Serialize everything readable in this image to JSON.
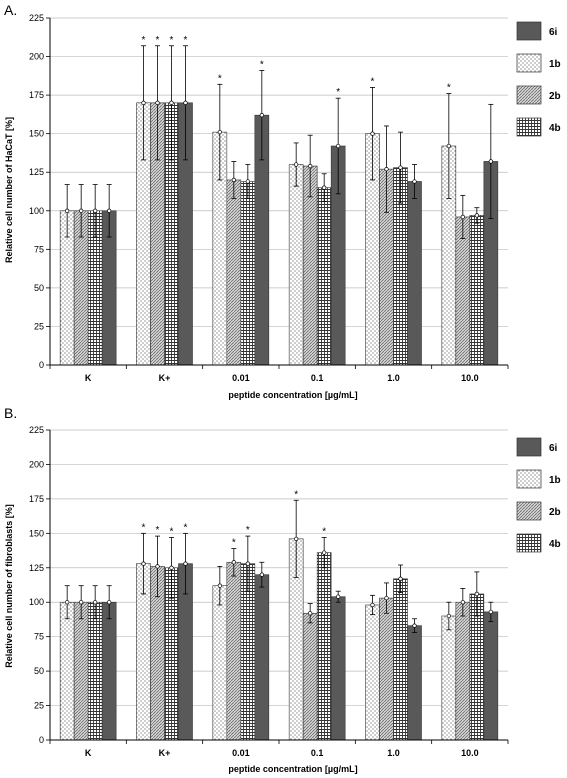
{
  "chart_data": [
    {
      "type": "bar",
      "panel": "A.",
      "xlabel": "peptide concentration  [µg/mL]",
      "ylabel": "Relative cell number  of HaCaT [%]",
      "ylim": [
        0,
        225
      ],
      "yticks": [
        "0",
        "25",
        "50",
        "75",
        "100",
        "125",
        "150",
        "175",
        "200",
        "225"
      ],
      "grid": true,
      "legend_position": "right",
      "legend_order": [
        "6i",
        "1b",
        "2b",
        "4b"
      ],
      "categories": [
        "K",
        "K+",
        "0.01",
        "0.1",
        "1.0",
        "10.0"
      ],
      "series": [
        {
          "name": "1b",
          "values": [
            100,
            170,
            151,
            130,
            150,
            142
          ],
          "errors": [
            17,
            37,
            31,
            14,
            30,
            34
          ],
          "significant": [
            false,
            true,
            true,
            false,
            true,
            true
          ]
        },
        {
          "name": "2b",
          "values": [
            100,
            170,
            120,
            129,
            127,
            96
          ],
          "errors": [
            17,
            37,
            12,
            20,
            28,
            14
          ],
          "significant": [
            false,
            true,
            false,
            false,
            false,
            false
          ]
        },
        {
          "name": "4b",
          "values": [
            100,
            170,
            119,
            115,
            128,
            97
          ],
          "errors": [
            17,
            37,
            11,
            9,
            23,
            5
          ],
          "significant": [
            false,
            true,
            false,
            false,
            false,
            false
          ]
        },
        {
          "name": "6i",
          "values": [
            100,
            170,
            162,
            142,
            119,
            132
          ],
          "errors": [
            17,
            37,
            29,
            31,
            11,
            37
          ],
          "significant": [
            false,
            true,
            true,
            true,
            false,
            false
          ]
        }
      ],
      "colors": {
        "1b": "#ffffff",
        "2b": "#c8c8c8",
        "4b": "#8c8c8c",
        "6i": "#595959"
      }
    },
    {
      "type": "bar",
      "panel": "B.",
      "xlabel": "peptide concentration  [µg/mL]",
      "ylabel": "Relative cell number of fibroblasts  [%]",
      "ylim": [
        0,
        225
      ],
      "yticks": [
        "0",
        "25",
        "50",
        "75",
        "100",
        "125",
        "150",
        "175",
        "200",
        "225"
      ],
      "grid": true,
      "legend_position": "right",
      "legend_order": [
        "6i",
        "1b",
        "2b",
        "4b"
      ],
      "categories": [
        "K",
        "K+",
        "0.01",
        "0.1",
        "1.0",
        "10.0"
      ],
      "series": [
        {
          "name": "1b",
          "values": [
            100,
            128,
            112,
            146,
            98,
            90
          ],
          "errors": [
            12,
            22,
            14,
            28,
            7,
            10
          ],
          "significant": [
            false,
            true,
            false,
            true,
            false,
            false
          ]
        },
        {
          "name": "2b",
          "values": [
            100,
            126,
            129,
            92,
            103,
            100
          ],
          "errors": [
            12,
            22,
            10,
            7,
            11,
            10
          ],
          "significant": [
            false,
            true,
            true,
            false,
            false,
            false
          ]
        },
        {
          "name": "4b",
          "values": [
            100,
            125,
            128,
            136,
            117,
            106
          ],
          "errors": [
            12,
            22,
            20,
            11,
            10,
            16
          ],
          "significant": [
            false,
            true,
            true,
            true,
            false,
            false
          ]
        },
        {
          "name": "6i",
          "values": [
            100,
            128,
            120,
            104,
            83,
            93
          ],
          "errors": [
            12,
            22,
            9,
            4,
            5,
            7
          ],
          "significant": [
            false,
            true,
            false,
            false,
            false,
            false
          ]
        }
      ],
      "colors": {
        "1b": "#ffffff",
        "2b": "#c8c8c8",
        "4b": "#8c8c8c",
        "6i": "#595959"
      }
    }
  ]
}
